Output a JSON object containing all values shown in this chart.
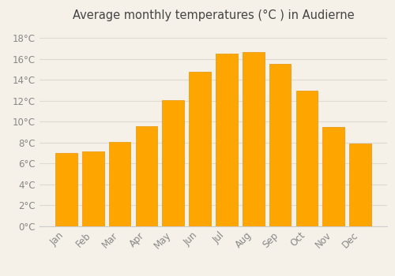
{
  "title": "Average monthly temperatures (°C ) in Audierne",
  "months": [
    "Jan",
    "Feb",
    "Mar",
    "Apr",
    "May",
    "Jun",
    "Jul",
    "Aug",
    "Sep",
    "Oct",
    "Nov",
    "Dec"
  ],
  "temperatures": [
    7.0,
    7.2,
    8.1,
    9.6,
    12.1,
    14.8,
    16.5,
    16.7,
    15.5,
    13.0,
    9.5,
    7.9
  ],
  "bar_color": "#FFA500",
  "bar_edge_color": "#E8950A",
  "background_color": "#F5F0E8",
  "grid_color": "#E0DBD0",
  "tick_label_color": "#888888",
  "title_color": "#444444",
  "ylim": [
    0,
    19
  ],
  "ytick_step": 2,
  "title_fontsize": 10.5,
  "bar_width": 0.82
}
